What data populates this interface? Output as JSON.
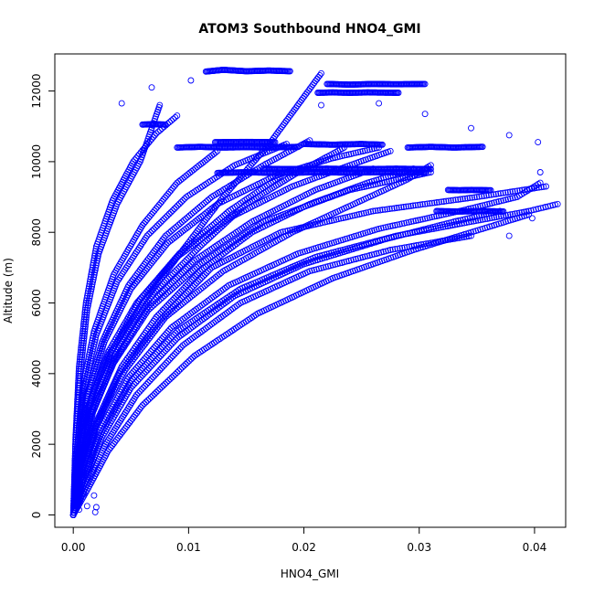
{
  "chart_data": {
    "type": "scatter",
    "title": "ATOM3 Southbound HNO4_GMI",
    "xlabel": "HNO4_GMI",
    "ylabel": "Altitude (m)",
    "xlim": [
      -0.0016,
      0.0427
    ],
    "ylim": [
      -350,
      13050
    ],
    "xticks": [
      0.0,
      0.01,
      0.02,
      0.03,
      0.04
    ],
    "xtick_labels": [
      "0.00",
      "0.01",
      "0.02",
      "0.03",
      "0.04"
    ],
    "yticks": [
      0,
      2000,
      4000,
      6000,
      8000,
      10000,
      12000
    ],
    "ytick_labels": [
      "0",
      "2000",
      "4000",
      "6000",
      "8000",
      "10000",
      "12000"
    ],
    "grid": false,
    "legend": "none",
    "marker": "open-circle",
    "color": "#0000ff",
    "profiles": [
      {
        "x": [
          0.0,
          0.0004,
          0.0012,
          0.003,
          0.006,
          0.0095,
          0.013,
          0.017,
          0.0215
        ],
        "y": [
          0,
          1500,
          3000,
          4500,
          6000,
          7500,
          9000,
          10500,
          12500
        ]
      },
      {
        "x": [
          0.0,
          0.0008,
          0.002,
          0.004,
          0.0075,
          0.012,
          0.018,
          0.026,
          0.035,
          0.041
        ],
        "y": [
          0,
          1000,
          2500,
          4000,
          5500,
          7000,
          8000,
          8600,
          9000,
          9300
        ]
      },
      {
        "x": [
          0.0,
          0.0005,
          0.0015,
          0.0035,
          0.0065,
          0.011,
          0.0165,
          0.024,
          0.031
        ],
        "y": [
          0,
          1200,
          2800,
          4300,
          5800,
          7100,
          8300,
          9200,
          9700
        ]
      },
      {
        "x": [
          0.0,
          0.0006,
          0.0018,
          0.004,
          0.007,
          0.011,
          0.015,
          0.0195,
          0.0235
        ],
        "y": [
          0,
          1400,
          3200,
          4800,
          6300,
          7600,
          8800,
          9700,
          10400
        ]
      },
      {
        "x": [
          0.0,
          0.001,
          0.0025,
          0.005,
          0.009,
          0.014,
          0.02,
          0.027,
          0.033,
          0.037
        ],
        "y": [
          0,
          900,
          2200,
          3600,
          5000,
          6200,
          7100,
          7800,
          8300,
          8600
        ]
      },
      {
        "x": [
          0.0,
          0.0003,
          0.0008,
          0.0018,
          0.0035,
          0.006,
          0.009,
          0.0125
        ],
        "y": [
          0,
          1800,
          3600,
          5200,
          6800,
          8200,
          9400,
          10300
        ]
      },
      {
        "x": [
          0.0,
          0.0002,
          0.0006,
          0.0012,
          0.0022,
          0.0038,
          0.0058,
          0.0075
        ],
        "y": [
          0,
          2000,
          4000,
          5800,
          7400,
          8800,
          10000,
          11600
        ]
      },
      {
        "x": [
          0.0,
          0.0007,
          0.002,
          0.0045,
          0.008,
          0.013,
          0.019,
          0.025,
          0.029,
          0.031
        ],
        "y": [
          0,
          1100,
          2600,
          4100,
          5600,
          6900,
          8000,
          8900,
          9500,
          9900
        ]
      },
      {
        "x": [
          0.0,
          0.0009,
          0.0023,
          0.0048,
          0.0085,
          0.0135,
          0.0195,
          0.0265,
          0.0335,
          0.0385,
          0.0405
        ],
        "y": [
          0,
          1000,
          2400,
          3900,
          5300,
          6500,
          7400,
          8100,
          8600,
          9000,
          9400
        ]
      },
      {
        "x": [
          0.0,
          0.0004,
          0.0011,
          0.0025,
          0.0048,
          0.008,
          0.012,
          0.0165,
          0.0205
        ],
        "y": [
          0,
          1600,
          3300,
          4900,
          6500,
          7900,
          9000,
          9900,
          10600
        ]
      },
      {
        "x": [
          0.0,
          0.0006,
          0.0016,
          0.0033,
          0.0058,
          0.0092,
          0.0135,
          0.018
        ],
        "y": [
          0,
          1300,
          3000,
          4600,
          6100,
          7400,
          8600,
          9600
        ]
      },
      {
        "x": [
          0.0,
          0.0011,
          0.0028,
          0.0055,
          0.0095,
          0.0145,
          0.0205,
          0.0275,
          0.0345
        ],
        "y": [
          0,
          800,
          2000,
          3400,
          4800,
          6000,
          6900,
          7500,
          7900
        ]
      },
      {
        "x": [
          0.0,
          0.0005,
          0.0014,
          0.003,
          0.0055,
          0.009,
          0.0135,
          0.019,
          0.024,
          0.0275
        ],
        "y": [
          0,
          1500,
          3100,
          4600,
          6000,
          7300,
          8400,
          9300,
          9900,
          10300
        ]
      },
      {
        "x": [
          0.0,
          0.0002,
          0.0005,
          0.0011,
          0.002,
          0.0034,
          0.0052,
          0.0072,
          0.009
        ],
        "y": [
          0,
          2200,
          4200,
          6000,
          7600,
          8900,
          10000,
          10800,
          11300
        ]
      },
      {
        "x": [
          0.0,
          0.0008,
          0.0021,
          0.0042,
          0.0072,
          0.011,
          0.0155,
          0.0205,
          0.0255,
          0.0295
        ],
        "y": [
          0,
          1200,
          2700,
          4200,
          5600,
          6900,
          8000,
          8800,
          9400,
          9800
        ]
      },
      {
        "x": [
          0.0,
          0.0003,
          0.0009,
          0.002,
          0.0038,
          0.0064,
          0.0098,
          0.014,
          0.0185
        ],
        "y": [
          0,
          1700,
          3500,
          5100,
          6600,
          7900,
          9000,
          9900,
          10500
        ]
      },
      {
        "x": [
          0.0,
          0.0012,
          0.003,
          0.006,
          0.0105,
          0.016,
          0.0225,
          0.0295,
          0.0355,
          0.0395
        ],
        "y": [
          0,
          700,
          1800,
          3100,
          4500,
          5700,
          6700,
          7500,
          8100,
          8500
        ]
      },
      {
        "x": [
          0.0,
          0.0006,
          0.0017,
          0.0036,
          0.0065,
          0.0105,
          0.0155,
          0.021,
          0.026
        ],
        "y": [
          0,
          1300,
          2900,
          4400,
          5900,
          7200,
          8300,
          9200,
          9800
        ]
      },
      {
        "x": [
          0.0,
          0.0004,
          0.0012,
          0.0027,
          0.005,
          0.0082,
          0.0125,
          0.0175,
          0.0225,
          0.0265
        ],
        "y": [
          0,
          1600,
          3300,
          4900,
          6400,
          7700,
          8800,
          9600,
          10100,
          10400
        ]
      },
      {
        "x": [
          0.0,
          0.0009,
          0.0024,
          0.005,
          0.009,
          0.0145,
          0.021,
          0.028,
          0.0345,
          0.0395,
          0.042
        ],
        "y": [
          0,
          1000,
          2300,
          3800,
          5200,
          6400,
          7300,
          7900,
          8300,
          8600,
          8800
        ]
      }
    ],
    "traverses": [
      {
        "x": [
          0.0115,
          0.013,
          0.015,
          0.017,
          0.0188
        ],
        "y": [
          12550,
          12600,
          12560,
          12580,
          12560
        ]
      },
      {
        "x": [
          0.022,
          0.024,
          0.026,
          0.028,
          0.0305
        ],
        "y": [
          12200,
          12180,
          12200,
          12190,
          12200
        ]
      },
      {
        "x": [
          0.0212,
          0.0225,
          0.024,
          0.0255,
          0.0282
        ],
        "y": [
          11950,
          11960,
          11950,
          11960,
          11950
        ]
      },
      {
        "x": [
          0.009,
          0.011,
          0.013,
          0.015,
          0.017,
          0.0195
        ],
        "y": [
          10400,
          10420,
          10400,
          10410,
          10400,
          10420
        ]
      },
      {
        "x": [
          0.0165,
          0.019,
          0.022,
          0.025,
          0.028,
          0.031
        ],
        "y": [
          9800,
          9790,
          9800,
          9790,
          9800,
          9790
        ]
      },
      {
        "x": [
          0.0125,
          0.015,
          0.018,
          0.021,
          0.024,
          0.027,
          0.0305
        ],
        "y": [
          9680,
          9700,
          9680,
          9700,
          9690,
          9700,
          9690
        ]
      },
      {
        "x": [
          0.029,
          0.031,
          0.033,
          0.0355
        ],
        "y": [
          10400,
          10420,
          10400,
          10420
        ]
      },
      {
        "x": [
          0.02,
          0.0225,
          0.025,
          0.0268
        ],
        "y": [
          10500,
          10480,
          10500,
          10480
        ]
      },
      {
        "x": [
          0.0325,
          0.0335,
          0.0345,
          0.0362
        ],
        "y": [
          9200,
          9190,
          9200,
          9190
        ]
      },
      {
        "x": [
          0.0315,
          0.0335,
          0.0355,
          0.0373
        ],
        "y": [
          8600,
          8590,
          8600,
          8590
        ]
      },
      {
        "x": [
          0.006,
          0.007,
          0.008
        ],
        "y": [
          11050,
          11060,
          11050
        ]
      },
      {
        "x": [
          0.0123,
          0.015,
          0.0175
        ],
        "y": [
          10550,
          10560,
          10550
        ]
      }
    ],
    "scattered_points": [
      {
        "x": 0.0042,
        "y": 11650
      },
      {
        "x": 0.0068,
        "y": 12100
      },
      {
        "x": 0.0102,
        "y": 12300
      },
      {
        "x": 0.0215,
        "y": 11600
      },
      {
        "x": 0.0265,
        "y": 11650
      },
      {
        "x": 0.0305,
        "y": 11350
      },
      {
        "x": 0.0345,
        "y": 10950
      },
      {
        "x": 0.0378,
        "y": 10750
      },
      {
        "x": 0.0403,
        "y": 10550
      },
      {
        "x": 0.0405,
        "y": 9700
      },
      {
        "x": 0.0398,
        "y": 8400
      },
      {
        "x": 0.0378,
        "y": 7900
      },
      {
        "x": 0.0005,
        "y": 150
      },
      {
        "x": 0.0012,
        "y": 250
      },
      {
        "x": 0.0019,
        "y": 80
      },
      {
        "x": 0.002,
        "y": 220
      },
      {
        "x": 0.0018,
        "y": 550
      },
      {
        "x": 0.0009,
        "y": 600
      }
    ]
  }
}
